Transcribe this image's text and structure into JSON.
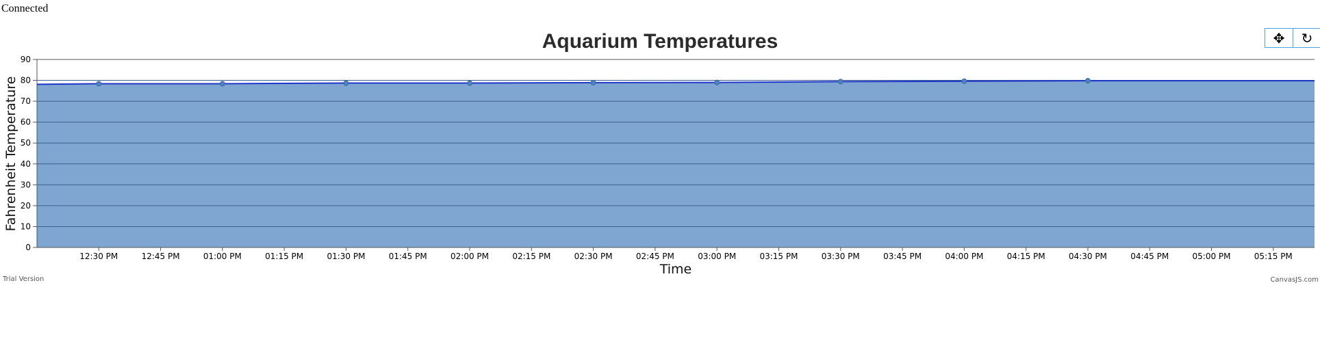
{
  "status_text": "Connected",
  "toolbar": {
    "pan_icon": "move-arrows-icon",
    "reset_icon": "reset-icon",
    "pan_glyph": "✥",
    "reset_glyph": "↻"
  },
  "chart_data": {
    "type": "area",
    "title": "Aquarium Temperatures",
    "xlabel": "Time",
    "ylabel": "Fahrenheit Temperature",
    "ylim": [
      0,
      90
    ],
    "y_ticks": [
      0,
      10,
      20,
      30,
      40,
      50,
      60,
      70,
      80,
      90
    ],
    "x_range": [
      "12:15 PM",
      "05:25 PM"
    ],
    "x_ticks": [
      "12:30 PM",
      "12:45 PM",
      "01:00 PM",
      "01:15 PM",
      "01:30 PM",
      "01:45 PM",
      "02:00 PM",
      "02:15 PM",
      "02:30 PM",
      "02:45 PM",
      "03:00 PM",
      "03:15 PM",
      "03:30 PM",
      "03:45 PM",
      "04:00 PM",
      "04:15 PM",
      "04:30 PM",
      "04:45 PM",
      "05:00 PM",
      "05:15 PM"
    ],
    "grid": true,
    "colors": {
      "fill": "#7fa6d1",
      "line": "#1f35c9",
      "marker": "#4f81bd",
      "grid": "#3f5f8f"
    },
    "series": [
      {
        "x": [
          "12:15 PM",
          "12:30 PM",
          "01:00 PM",
          "01:30 PM",
          "02:00 PM",
          "02:30 PM",
          "03:00 PM",
          "03:30 PM",
          "04:00 PM",
          "04:30 PM",
          "05:25 PM"
        ],
        "values": [
          78.1,
          78.4,
          78.4,
          78.7,
          78.7,
          78.9,
          79.0,
          79.4,
          79.6,
          79.8,
          79.8
        ],
        "markers": [
          false,
          true,
          true,
          true,
          true,
          true,
          true,
          true,
          true,
          true,
          false
        ]
      }
    ]
  },
  "credits": {
    "left": "Trial Version",
    "right": "CanvasJS.com"
  }
}
